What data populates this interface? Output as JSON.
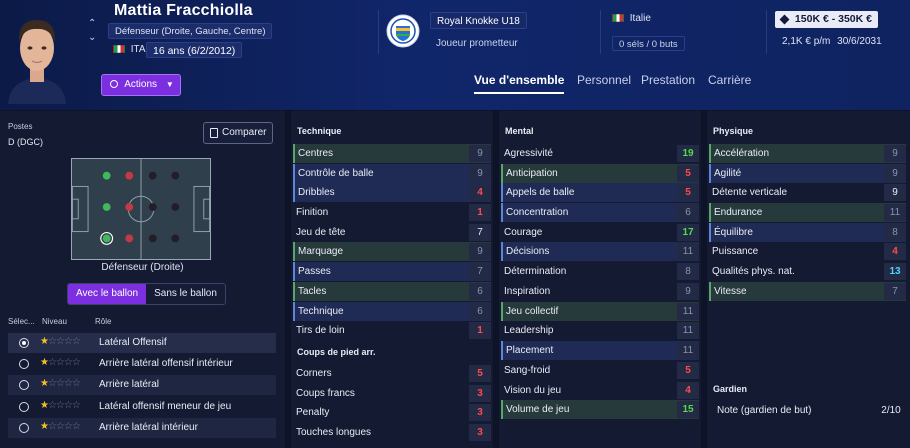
{
  "player": {
    "name": "Mattia Fracchiolla",
    "positions_desc": "Défenseur (Droite, Gauche, Centre)",
    "nationality_code": "ITA",
    "age_text": "16 ans (6/2/2012)"
  },
  "actions_label": "Actions",
  "club": {
    "name": "Royal Knokke U18",
    "status": "Joueur prometteur"
  },
  "nation": {
    "country": "Italie",
    "caps": "0 séls / 0 buts"
  },
  "contract": {
    "value": "150K € - 350K €",
    "wage": "2,1K € p/m",
    "expiry": "30/6/2031"
  },
  "tabs": [
    "Vue d'ensemble",
    "Personnel",
    "Prestation",
    "Carrière"
  ],
  "positions": {
    "label": "Postes",
    "value": "D (DGC)",
    "compare_label": "Comparer",
    "pitch_caption": "Défenseur (Droite)",
    "toggle_with": "Avec le ballon",
    "toggle_without": "Sans le ballon"
  },
  "roles": {
    "head_select": "Sélec...",
    "head_level": "Niveau",
    "head_role": "Rôle",
    "items": [
      {
        "name": "Latéral Offensif",
        "stars": 1,
        "selected": true
      },
      {
        "name": "Arrière latéral offensif intérieur",
        "stars": 1,
        "selected": false
      },
      {
        "name": "Arrière latéral",
        "stars": 1,
        "selected": false
      },
      {
        "name": "Latéral offensif meneur de jeu",
        "stars": 1,
        "selected": false
      },
      {
        "name": "Arrière latéral intérieur",
        "stars": 1,
        "selected": false
      }
    ]
  },
  "technique": {
    "title": "Technique",
    "attrs": [
      {
        "name": "Centres",
        "value": "9"
      },
      {
        "name": "Contrôle de balle",
        "value": "9"
      },
      {
        "name": "Dribbles",
        "value": "4"
      },
      {
        "name": "Finition",
        "value": "1"
      },
      {
        "name": "Jeu de tête",
        "value": "7"
      },
      {
        "name": "Marquage",
        "value": "9"
      },
      {
        "name": "Passes",
        "value": "7"
      },
      {
        "name": "Tacles",
        "value": "6"
      },
      {
        "name": "Technique",
        "value": "6"
      },
      {
        "name": "Tirs de loin",
        "value": "1"
      }
    ]
  },
  "set_pieces": {
    "title": "Coups de pied arr.",
    "attrs": [
      {
        "name": "Corners",
        "value": "5"
      },
      {
        "name": "Coups francs",
        "value": "3"
      },
      {
        "name": "Penalty",
        "value": "3"
      },
      {
        "name": "Touches longues",
        "value": "3"
      }
    ]
  },
  "mental": {
    "title": "Mental",
    "attrs": [
      {
        "name": "Agressivité",
        "value": "19"
      },
      {
        "name": "Anticipation",
        "value": "5"
      },
      {
        "name": "Appels de balle",
        "value": "5"
      },
      {
        "name": "Concentration",
        "value": "6"
      },
      {
        "name": "Courage",
        "value": "17"
      },
      {
        "name": "Décisions",
        "value": "11"
      },
      {
        "name": "Détermination",
        "value": "8"
      },
      {
        "name": "Inspiration",
        "value": "9"
      },
      {
        "name": "Jeu collectif",
        "value": "11"
      },
      {
        "name": "Leadership",
        "value": "11"
      },
      {
        "name": "Placement",
        "value": "11"
      },
      {
        "name": "Sang-froid",
        "value": "5"
      },
      {
        "name": "Vision du jeu",
        "value": "4"
      },
      {
        "name": "Volume de jeu",
        "value": "15"
      }
    ]
  },
  "physique": {
    "title": "Physique",
    "attrs": [
      {
        "name": "Accélération",
        "value": "9"
      },
      {
        "name": "Agilité",
        "value": "9"
      },
      {
        "name": "Détente verticale",
        "value": "9"
      },
      {
        "name": "Endurance",
        "value": "11"
      },
      {
        "name": "Équilibre",
        "value": "8"
      },
      {
        "name": "Puissance",
        "value": "4"
      },
      {
        "name": "Qualités phys. nat.",
        "value": "13"
      },
      {
        "name": "Vitesse",
        "value": "7"
      }
    ]
  },
  "goalkeeper": {
    "title": "Gardien",
    "rating_label": "Note (gardien de but)",
    "rating_value": "2/10"
  },
  "colors": {
    "accent": "#7b2fe0",
    "header_bg": "#10266a",
    "value_red": "#ff4b4b",
    "value_green": "#53db4a",
    "value_blue": "#4fd3ff"
  }
}
